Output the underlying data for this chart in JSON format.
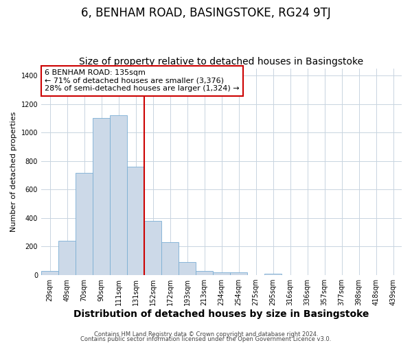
{
  "title": "6, BENHAM ROAD, BASINGSTOKE, RG24 9TJ",
  "subtitle": "Size of property relative to detached houses in Basingstoke",
  "xlabel": "Distribution of detached houses by size in Basingstoke",
  "ylabel": "Number of detached properties",
  "categories": [
    "29sqm",
    "49sqm",
    "70sqm",
    "90sqm",
    "111sqm",
    "131sqm",
    "152sqm",
    "172sqm",
    "193sqm",
    "213sqm",
    "234sqm",
    "254sqm",
    "275sqm",
    "295sqm",
    "316sqm",
    "336sqm",
    "357sqm",
    "377sqm",
    "398sqm",
    "418sqm",
    "439sqm"
  ],
  "values": [
    30,
    242,
    718,
    1103,
    1120,
    760,
    380,
    230,
    90,
    30,
    20,
    20,
    0,
    10,
    0,
    0,
    0,
    0,
    0,
    0,
    0
  ],
  "bar_color": "#ccd9e8",
  "bar_edge_color": "#7aaed4",
  "vline_color": "#cc0000",
  "vline_pos": 5.5,
  "annotation_text": "6 BENHAM ROAD: 135sqm\n← 71% of detached houses are smaller (3,376)\n28% of semi-detached houses are larger (1,324) →",
  "annotation_box_color": "#ffffff",
  "annotation_box_edge_color": "#cc0000",
  "ylim": [
    0,
    1450
  ],
  "yticks": [
    0,
    200,
    400,
    600,
    800,
    1000,
    1200,
    1400
  ],
  "footer1": "Contains HM Land Registry data © Crown copyright and database right 2024.",
  "footer2": "Contains public sector information licensed under the Open Government Licence v3.0.",
  "bg_color": "#ffffff",
  "plot_bg_color": "#ffffff",
  "grid_color": "#c8d4e0",
  "title_fontsize": 12,
  "subtitle_fontsize": 10,
  "xlabel_fontsize": 10,
  "ylabel_fontsize": 8,
  "tick_fontsize": 7,
  "annotation_fontsize": 8,
  "footer_fontsize": 6
}
